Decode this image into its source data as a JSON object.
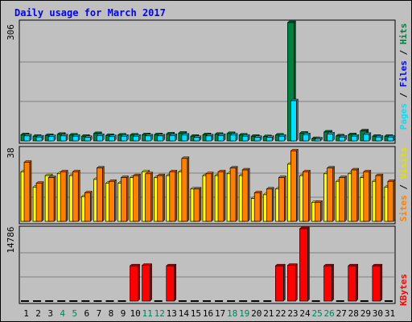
{
  "chart_data": [
    {
      "type": "bar",
      "title": "Daily usage for March 2017",
      "categories": [
        "1",
        "2",
        "3",
        "4",
        "5",
        "6",
        "7",
        "8",
        "9",
        "10",
        "11",
        "12",
        "13",
        "14",
        "15",
        "16",
        "17",
        "18",
        "19",
        "20",
        "21",
        "22",
        "23",
        "24",
        "25",
        "26",
        "27",
        "28",
        "29",
        "30",
        "31"
      ],
      "weekend_days": [
        "4",
        "5",
        "11",
        "12",
        "18",
        "19",
        "25",
        "26"
      ],
      "ymax_label": "306",
      "ylim": [
        0,
        306
      ],
      "legend": [
        "Pages",
        "Files",
        "Hits"
      ],
      "series": [
        {
          "name": "Hits",
          "color": "#008040",
          "values": [
            16,
            12,
            14,
            17,
            15,
            12,
            19,
            14,
            15,
            15,
            16,
            16,
            18,
            20,
            12,
            16,
            17,
            19,
            15,
            12,
            11,
            15,
            306,
            20,
            6,
            23,
            13,
            16,
            26,
            12,
            12
          ]
        },
        {
          "name": "Files",
          "color": "#00e0ff",
          "values": [
            13,
            10,
            11,
            13,
            12,
            9,
            14,
            11,
            12,
            12,
            13,
            13,
            14,
            15,
            9,
            13,
            14,
            15,
            12,
            9,
            9,
            12,
            104,
            16,
            5,
            18,
            10,
            12,
            17,
            10,
            10
          ]
        },
        {
          "name": "Pages",
          "color": "#00a0c0",
          "values": [
            0,
            0,
            0,
            0,
            0,
            0,
            0,
            0,
            0,
            0,
            0,
            0,
            0,
            0,
            0,
            0,
            0,
            0,
            0,
            0,
            0,
            0,
            0,
            0,
            0,
            0,
            0,
            0,
            0,
            0,
            0
          ]
        }
      ]
    },
    {
      "type": "bar",
      "ymax_label": "38",
      "ylim": [
        0,
        38
      ],
      "legend": [
        "Sites",
        "Visits"
      ],
      "series": [
        {
          "name": "Visits",
          "color": "#ffff00",
          "values": [
            26,
            18,
            24,
            25,
            24,
            13,
            22,
            20,
            20,
            23,
            26,
            23,
            24,
            26,
            17,
            24,
            24,
            25,
            24,
            12,
            14,
            17,
            30,
            24,
            10,
            25,
            21,
            25,
            23,
            21,
            18
          ]
        },
        {
          "name": "Sites",
          "color": "#ff8000",
          "values": [
            31,
            20,
            23,
            26,
            26,
            15,
            28,
            21,
            23,
            24,
            25,
            24,
            26,
            33,
            17,
            25,
            26,
            28,
            27,
            15,
            17,
            23,
            37,
            26,
            10,
            28,
            23,
            27,
            26,
            24,
            21
          ]
        }
      ]
    },
    {
      "type": "bar",
      "ymax_label": "14786",
      "ylim": [
        0,
        14786
      ],
      "legend": [
        "KBytes"
      ],
      "series": [
        {
          "name": "KBytes",
          "color": "#ff0000",
          "values": [
            0,
            0,
            0,
            0,
            0,
            0,
            0,
            0,
            0,
            7200,
            7300,
            0,
            7200,
            0,
            0,
            0,
            0,
            0,
            0,
            0,
            0,
            7200,
            7300,
            14786,
            0,
            7200,
            0,
            7200,
            0,
            7200,
            0
          ]
        }
      ]
    }
  ],
  "colors": {
    "background": "#c0c0c0",
    "plot_bg": "#c0c0c0",
    "grid": "#808080",
    "title": "#0000ff",
    "weekday_label": "#000000",
    "weekend_label": "#00805c"
  }
}
